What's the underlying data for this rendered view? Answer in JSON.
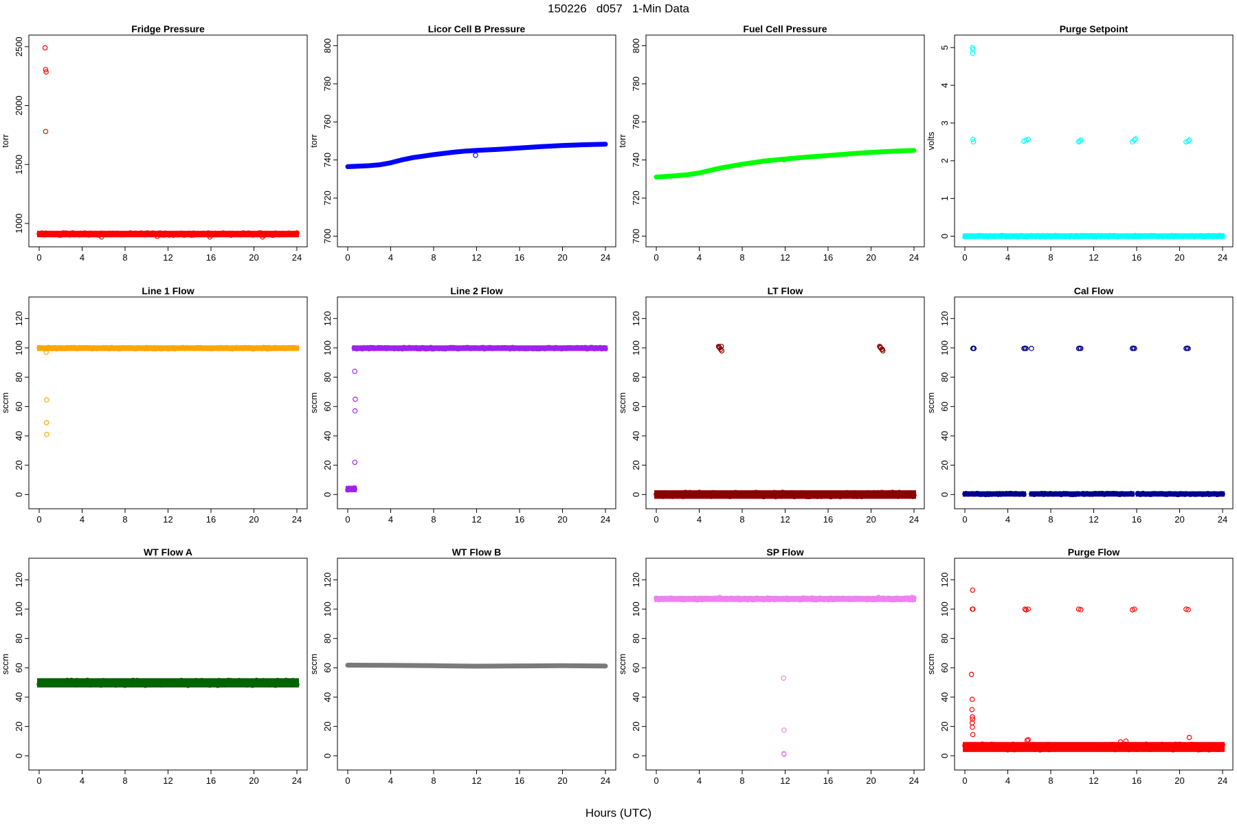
{
  "figure": {
    "title": "150226   d057   1-Min Data",
    "xlabel": "Hours (UTC)"
  },
  "chart_data": [
    {
      "type": "scatter",
      "title": "Fridge Pressure",
      "xlabel": "",
      "ylabel": "torr",
      "xlim": [
        0,
        24
      ],
      "ylim": [
        860,
        2540
      ],
      "xticks": [
        0,
        4,
        8,
        12,
        16,
        20,
        24
      ],
      "yticks": [
        1000,
        1500,
        2000,
        2500
      ],
      "grid": false,
      "color": "#ff0000",
      "series": [
        {
          "kind": "band",
          "segments": [
            [
              0,
              24,
              900,
              920
            ]
          ]
        },
        {
          "kind": "points",
          "x": [
            0.55,
            0.6,
            0.65,
            0.6,
            5.8,
            11.0,
            15.9,
            20.8
          ],
          "y": [
            2490,
            2305,
            2285,
            1780,
            885,
            890,
            885,
            885
          ]
        }
      ]
    },
    {
      "type": "scatter",
      "title": "Licor Cell B Pressure",
      "xlabel": "",
      "ylabel": "torr",
      "xlim": [
        0,
        24
      ],
      "ylim": [
        698,
        802
      ],
      "xticks": [
        0,
        4,
        8,
        12,
        16,
        20,
        24
      ],
      "yticks": [
        700,
        720,
        740,
        760,
        780,
        800
      ],
      "grid": false,
      "color": "#0000ff",
      "series": [
        {
          "kind": "line",
          "x": [
            0,
            2,
            3,
            4,
            5,
            6,
            7,
            8,
            9,
            10,
            11,
            12,
            14,
            16,
            18,
            20,
            22,
            24
          ],
          "y": [
            736.5,
            737,
            737.5,
            738.5,
            740,
            741.2,
            742,
            742.8,
            743.5,
            744.2,
            744.7,
            745,
            745.6,
            746.3,
            747,
            747.6,
            748,
            748.3
          ]
        },
        {
          "kind": "points",
          "x": [
            11.9
          ],
          "y": [
            742.5
          ]
        }
      ]
    },
    {
      "type": "scatter",
      "title": "Fuel Cell Pressure",
      "xlabel": "",
      "ylabel": "torr",
      "xlim": [
        0,
        24
      ],
      "ylim": [
        698,
        802
      ],
      "xticks": [
        0,
        4,
        8,
        12,
        16,
        20,
        24
      ],
      "yticks": [
        700,
        720,
        740,
        760,
        780,
        800
      ],
      "grid": false,
      "color": "#00ff00",
      "series": [
        {
          "kind": "line",
          "x": [
            0,
            2,
            3,
            4,
            5,
            6,
            7,
            8,
            9,
            10,
            11,
            12,
            14,
            16,
            18,
            20,
            22,
            24
          ],
          "y": [
            731,
            731.8,
            732.3,
            733.2,
            734.5,
            735.8,
            736.8,
            737.8,
            738.6,
            739.4,
            740,
            740.5,
            741.5,
            742.3,
            743.2,
            744,
            744.6,
            745
          ]
        },
        {
          "kind": "points",
          "x": [
            11.9
          ],
          "y": [
            740
          ]
        }
      ]
    },
    {
      "type": "scatter",
      "title": "Purge Setpoint",
      "xlabel": "",
      "ylabel": "volts",
      "xlim": [
        0,
        24
      ],
      "ylim": [
        -0.1,
        5.15
      ],
      "xticks": [
        0,
        4,
        8,
        12,
        16,
        20,
        24
      ],
      "yticks": [
        0,
        1,
        2,
        3,
        4,
        5
      ],
      "grid": false,
      "color": "#00ffff",
      "series": [
        {
          "kind": "band",
          "segments": [
            [
              0,
              24,
              -0.02,
              0.02
            ]
          ]
        },
        {
          "kind": "points",
          "x": [
            0.7,
            0.75,
            0.72,
            0.75,
            0.8,
            5.5,
            5.7,
            5.9,
            10.6,
            10.8,
            10.7,
            15.6,
            15.8,
            15.9,
            20.6,
            20.8,
            20.9
          ],
          "y": [
            5.0,
            4.95,
            4.85,
            2.57,
            2.5,
            2.52,
            2.55,
            2.57,
            2.5,
            2.55,
            2.52,
            2.5,
            2.55,
            2.58,
            2.5,
            2.52,
            2.55
          ]
        }
      ]
    },
    {
      "type": "scatter",
      "title": "Line 1 Flow",
      "xlabel": "",
      "ylabel": "sccm",
      "xlim": [
        0,
        24
      ],
      "ylim": [
        -5,
        130
      ],
      "xticks": [
        0,
        4,
        8,
        12,
        16,
        20,
        24
      ],
      "yticks": [
        0,
        20,
        40,
        60,
        80,
        100,
        120
      ],
      "grid": false,
      "color": "#ffa500",
      "series": [
        {
          "kind": "band",
          "segments": [
            [
              0,
              24,
              99.3,
              100.3
            ]
          ]
        },
        {
          "kind": "points",
          "x": [
            0.65,
            0.7,
            0.68,
            0.7
          ],
          "y": [
            97,
            64.5,
            49,
            41
          ]
        }
      ]
    },
    {
      "type": "scatter",
      "title": "Line 2 Flow",
      "xlabel": "",
      "ylabel": "sccm",
      "xlim": [
        0,
        24
      ],
      "ylim": [
        -5,
        130
      ],
      "xticks": [
        0,
        4,
        8,
        12,
        16,
        20,
        24
      ],
      "yticks": [
        0,
        20,
        40,
        60,
        80,
        100,
        120
      ],
      "grid": false,
      "color": "#a020f0",
      "series": [
        {
          "kind": "band",
          "segments": [
            [
              0.6,
              24,
              99.3,
              100.3
            ],
            [
              0,
              0.65,
              3,
              4.5
            ]
          ]
        },
        {
          "kind": "points",
          "x": [
            0.65,
            0.7,
            0.68,
            0.66,
            0.62
          ],
          "y": [
            84,
            65,
            57,
            22,
            4.5
          ]
        }
      ]
    },
    {
      "type": "scatter",
      "title": "LT Flow",
      "xlabel": "",
      "ylabel": "sccm",
      "xlim": [
        0,
        24
      ],
      "ylim": [
        -5,
        130
      ],
      "xticks": [
        0,
        4,
        8,
        12,
        16,
        20,
        24
      ],
      "yticks": [
        0,
        20,
        40,
        60,
        80,
        100,
        120
      ],
      "grid": false,
      "color": "#8b0000",
      "series": [
        {
          "kind": "band",
          "segments": [
            [
              0,
              24,
              -1.5,
              1.5
            ]
          ]
        },
        {
          "kind": "points",
          "x": [
            5.8,
            5.9,
            6.0,
            6.1,
            5.85,
            6.05,
            20.8,
            20.9,
            21.0,
            21.1,
            20.85,
            21.05
          ],
          "y": [
            101,
            100,
            99,
            98,
            100.5,
            101,
            101,
            100,
            99,
            98,
            100.5,
            99
          ]
        }
      ]
    },
    {
      "type": "scatter",
      "title": "Cal Flow",
      "xlabel": "",
      "ylabel": "sccm",
      "xlim": [
        0,
        24
      ],
      "ylim": [
        -5,
        130
      ],
      "xticks": [
        0,
        4,
        8,
        12,
        16,
        20,
        24
      ],
      "yticks": [
        0,
        20,
        40,
        60,
        80,
        100,
        120
      ],
      "grid": false,
      "color": "#00008b",
      "series": [
        {
          "kind": "band",
          "segments": [
            [
              0,
              0.7,
              0,
              0.8
            ],
            [
              0.85,
              5.5,
              0,
              0.8
            ],
            [
              6.2,
              10.6,
              0,
              0.8
            ],
            [
              11.0,
              15.6,
              0,
              0.8
            ],
            [
              16.1,
              20.6,
              0,
              0.8
            ],
            [
              21.0,
              24,
              0,
              0.8
            ]
          ]
        },
        {
          "kind": "points",
          "x": [
            0.75,
            0.8,
            0.85,
            5.5,
            5.6,
            5.7,
            6.2,
            10.6,
            10.7,
            10.8,
            15.6,
            15.7,
            15.8,
            20.6,
            20.7,
            20.8
          ],
          "y": [
            99.6,
            99.8,
            99.6,
            99.6,
            99.8,
            99.6,
            99.6,
            99.6,
            99.8,
            99.6,
            99.6,
            99.8,
            99.6,
            99.6,
            99.8,
            99.6
          ]
        }
      ]
    },
    {
      "type": "scatter",
      "title": "WT Flow A",
      "xlabel": "",
      "ylabel": "sccm",
      "xlim": [
        0,
        24
      ],
      "ylim": [
        -5,
        130
      ],
      "xticks": [
        0,
        4,
        8,
        12,
        16,
        20,
        24
      ],
      "yticks": [
        0,
        20,
        40,
        60,
        80,
        100,
        120
      ],
      "grid": false,
      "color": "#006400",
      "series": [
        {
          "kind": "band",
          "segments": [
            [
              0,
              24,
              48,
              51.5
            ]
          ]
        }
      ]
    },
    {
      "type": "scatter",
      "title": "WT Flow B",
      "xlabel": "",
      "ylabel": "sccm",
      "xlim": [
        0,
        24
      ],
      "ylim": [
        -5,
        130
      ],
      "xticks": [
        0,
        4,
        8,
        12,
        16,
        20,
        24
      ],
      "yticks": [
        0,
        20,
        40,
        60,
        80,
        100,
        120
      ],
      "grid": false,
      "color": "#7a7a7a",
      "series": [
        {
          "kind": "line",
          "x": [
            0,
            4,
            8,
            12,
            16,
            20,
            24
          ],
          "y": [
            61.8,
            61.7,
            61.4,
            61.1,
            61.3,
            61.4,
            61.2
          ]
        }
      ]
    },
    {
      "type": "scatter",
      "title": "SP Flow",
      "xlabel": "",
      "ylabel": "sccm",
      "xlim": [
        0,
        24
      ],
      "ylim": [
        -5,
        130
      ],
      "xticks": [
        0,
        4,
        8,
        12,
        16,
        20,
        24
      ],
      "yticks": [
        0,
        20,
        40,
        60,
        80,
        100,
        120
      ],
      "grid": false,
      "color": "#ee82ee",
      "series": [
        {
          "kind": "band",
          "segments": [
            [
              0,
              24,
              106.3,
              107.6
            ]
          ]
        },
        {
          "kind": "points",
          "x": [
            11.85,
            11.9,
            11.88,
            11.9,
            5.9,
            20.7,
            23.8
          ],
          "y": [
            53,
            17.5,
            1.5,
            1,
            108,
            108,
            108
          ]
        }
      ]
    },
    {
      "type": "scatter",
      "title": "Purge Flow",
      "xlabel": "",
      "ylabel": "sccm",
      "xlim": [
        0,
        24
      ],
      "ylim": [
        -5,
        130
      ],
      "xticks": [
        0,
        4,
        8,
        12,
        16,
        20,
        24
      ],
      "yticks": [
        0,
        20,
        40,
        60,
        80,
        100,
        120
      ],
      "grid": false,
      "color": "#ff0000",
      "series": [
        {
          "kind": "band",
          "segments": [
            [
              0,
              24,
              4,
              8
            ]
          ]
        },
        {
          "kind": "points",
          "x": [
            0.72,
            0.7,
            0.75,
            0.62,
            0.68,
            0.66,
            0.7,
            0.72,
            0.68,
            0.7,
            0.74,
            5.6,
            5.7,
            5.9,
            10.6,
            10.8,
            15.6,
            15.8,
            20.6,
            20.8,
            5.8,
            5.9,
            20.9,
            14.5,
            15.0
          ],
          "y": [
            113,
            100,
            100,
            55.5,
            38.5,
            31.5,
            26.5,
            25,
            22.5,
            19.5,
            14.5,
            100,
            99.5,
            100,
            100,
            99.6,
            99.5,
            100,
            100,
            99.6,
            10.5,
            11,
            12.5,
            9.5,
            10
          ]
        }
      ]
    }
  ]
}
